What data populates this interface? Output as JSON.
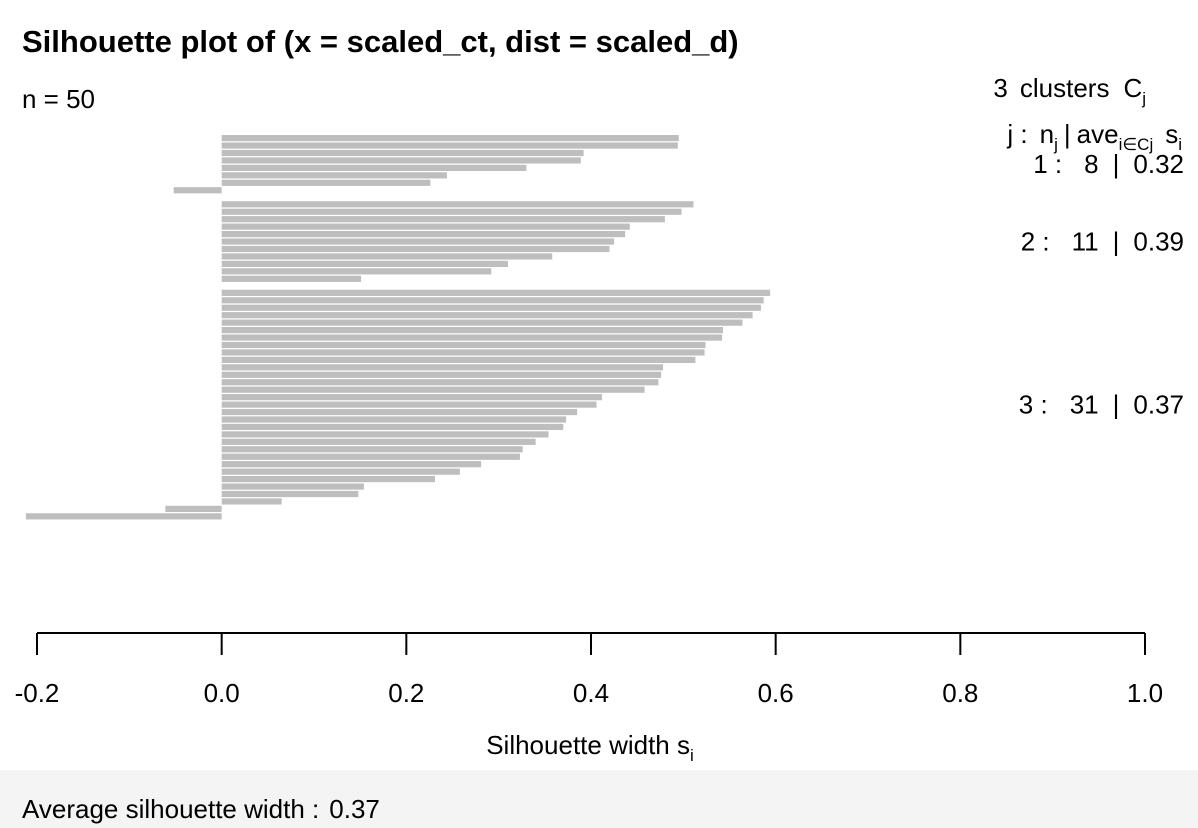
{
  "chart_data": {
    "type": "bar",
    "orientation": "horizontal",
    "title": "Silhouette plot of (x = scaled_ct, dist = scaled_d)",
    "n_label": "n = 50",
    "xlabel": {
      "main": "Silhouette width s",
      "sub": "i"
    },
    "xlim": [
      -0.2,
      1.0
    ],
    "xticks": [
      "-0.2",
      "0.0",
      "0.2",
      "0.4",
      "0.6",
      "0.8",
      "1.0"
    ],
    "bar_color": "#bebebe",
    "legend_header": {
      "clusters_count": "3",
      "clusters_word": "clusters",
      "C": "C",
      "C_sub": "j",
      "row_j": "j :",
      "row_n": "n",
      "row_n_sub": "j",
      "row_sep": "|",
      "row_ave": "ave",
      "row_ave_sub": "i∈Cj",
      "row_s": "s",
      "row_s_sub": "i"
    },
    "clusters": [
      {
        "label": "1 :",
        "n": "8",
        "sep": "|",
        "avg": "0.32",
        "values": [
          0.495,
          0.494,
          0.392,
          0.389,
          0.33,
          0.244,
          0.226,
          -0.052
        ]
      },
      {
        "label": "2 :",
        "n": "11",
        "sep": "|",
        "avg": "0.39",
        "values": [
          0.511,
          0.498,
          0.48,
          0.442,
          0.437,
          0.425,
          0.42,
          0.358,
          0.31,
          0.292,
          0.151
        ]
      },
      {
        "label": "3 :",
        "n": "31",
        "sep": "|",
        "avg": "0.37",
        "values": [
          0.594,
          0.587,
          0.584,
          0.575,
          0.564,
          0.543,
          0.542,
          0.524,
          0.523,
          0.513,
          0.478,
          0.476,
          0.473,
          0.458,
          0.412,
          0.406,
          0.385,
          0.373,
          0.37,
          0.354,
          0.34,
          0.326,
          0.323,
          0.281,
          0.258,
          0.231,
          0.154,
          0.148,
          0.065,
          -0.061,
          -0.212
        ]
      }
    ],
    "average_label": "Average silhouette width :",
    "average_value": "0.37"
  }
}
